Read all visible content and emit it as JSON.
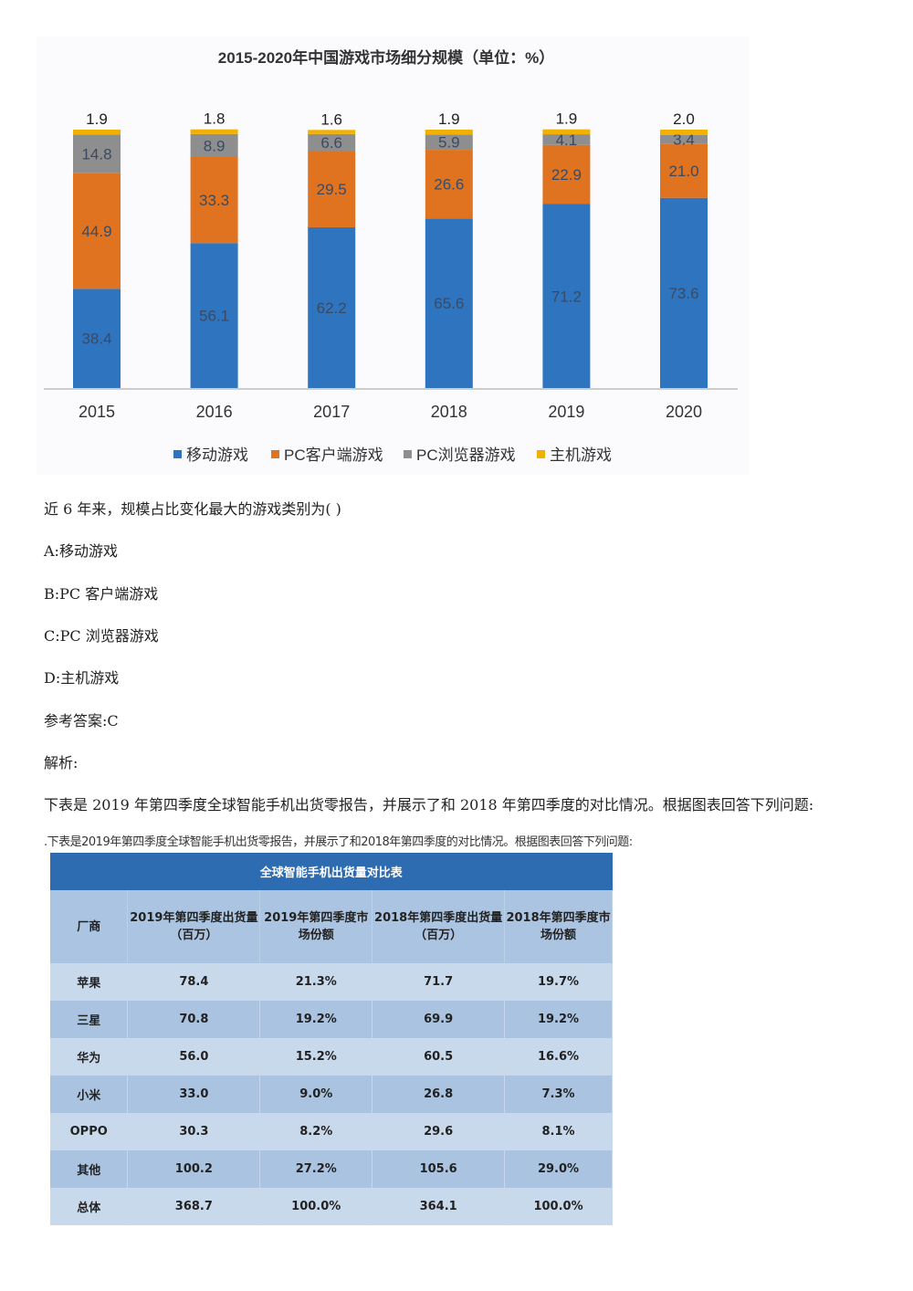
{
  "chart_data": {
    "type": "bar",
    "stacked": true,
    "title": "2015-2020年中国游戏市场细分规模（单位：%）",
    "categories": [
      "2015",
      "2016",
      "2017",
      "2018",
      "2019",
      "2020"
    ],
    "series": [
      {
        "name": "移动游戏",
        "color": "#2e74be",
        "values": [
          38.4,
          56.1,
          62.2,
          65.6,
          71.2,
          73.6
        ]
      },
      {
        "name": "PC客户端游戏",
        "color": "#e0731f",
        "values": [
          44.9,
          33.3,
          29.5,
          26.6,
          22.9,
          21.0
        ]
      },
      {
        "name": "PC浏览器游戏",
        "color": "#8e8e8e",
        "values": [
          14.8,
          8.9,
          6.6,
          5.9,
          4.1,
          3.4
        ]
      },
      {
        "name": "主机游戏",
        "color": "#f2b100",
        "values": [
          1.9,
          1.8,
          1.6,
          1.9,
          1.9,
          2.0
        ]
      }
    ],
    "ylim": [
      0,
      100
    ],
    "grid": false,
    "legend": "bottom"
  },
  "question": "近 6 年来，规模占比变化最大的游戏类别为( )",
  "options": [
    "A:移动游戏",
    "B:PC 客户端游戏",
    "C:PC 浏览器游戏",
    "D:主机游戏"
  ],
  "answer": "参考答案:C",
  "analysis": "解析:",
  "intro": "下表是 2019 年第四季度全球智能手机出货零报告，并展示了和 2018 年第四季度的对比情况。根据图表回答下列问题:",
  "table": {
    "caption": ".下表是2019年第四季度全球智能手机出货零报告，并展示了和2018年第四季度的对比情况。根据图表回答下列问题:",
    "title": "全球智能手机出货量对比表",
    "headers": [
      "厂商",
      "2019年第四季度出货量（百万）",
      "2019年第四季度市场份额",
      "2018年第四季度出货量（百万）",
      "2018年第四季度市场份额"
    ],
    "rows": [
      [
        "苹果",
        "78.4",
        "21.3%",
        "71.7",
        "19.7%"
      ],
      [
        "三星",
        "70.8",
        "19.2%",
        "69.9",
        "19.2%"
      ],
      [
        "华为",
        "56.0",
        "15.2%",
        "60.5",
        "16.6%"
      ],
      [
        "小米",
        "33.0",
        "9.0%",
        "26.8",
        "7.3%"
      ],
      [
        "OPPO",
        "30.3",
        "8.2%",
        "29.6",
        "8.1%"
      ],
      [
        "其他",
        "100.2",
        "27.2%",
        "105.6",
        "29.0%"
      ],
      [
        "总体",
        "368.7",
        "100.0%",
        "364.1",
        "100.0%"
      ]
    ]
  }
}
